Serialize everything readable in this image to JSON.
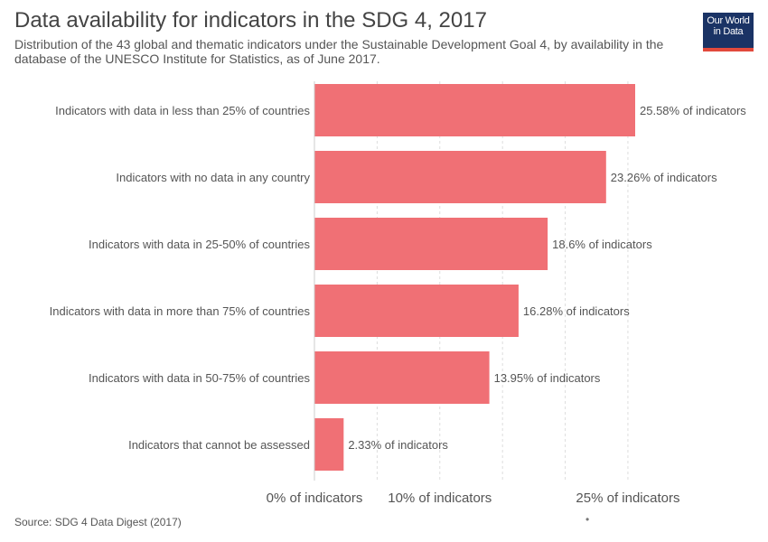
{
  "header": {
    "title": "Data availability for indicators in the SDG 4, 2017",
    "subtitle": "Distribution of the 43 global and thematic indicators under the Sustainable Development Goal 4, by availability in the database of the UNESCO Institute for Statistics, as of June 2017."
  },
  "logo": {
    "line1": "Our World",
    "line2": "in Data",
    "bg_color": "#1a3365",
    "accent_color": "#e2493c"
  },
  "footer": {
    "source": "Source: SDG 4 Data Digest (2017)",
    "marker": "•"
  },
  "chart_data": {
    "type": "bar",
    "orientation": "horizontal",
    "categories": [
      "Indicators with data in less than 25% of countries",
      "Indicators with no data in any country",
      "Indicators with data in 25-50% of countries",
      "Indicators with data in more than 75% of countries",
      "Indicators with data in 50-75% of countries",
      "Indicators that cannot be assessed"
    ],
    "values": [
      25.58,
      23.26,
      18.6,
      16.28,
      13.95,
      2.33
    ],
    "value_labels": [
      "25.58% of indicators",
      "23.26% of indicators",
      "18.6% of indicators",
      "16.28% of indicators",
      "13.95% of indicators",
      "2.33% of indicators"
    ],
    "x_ticks": [
      {
        "value": 0,
        "label": "0% of indicators"
      },
      {
        "value": 5,
        "label": ""
      },
      {
        "value": 10,
        "label": "10% of indicators"
      },
      {
        "value": 15,
        "label": ""
      },
      {
        "value": 20,
        "label": ""
      },
      {
        "value": 25,
        "label": "25% of indicators"
      }
    ],
    "xlim": [
      0,
      25.58
    ],
    "grid": true,
    "bar_color": "#f07075",
    "grid_color": "#dddddd"
  }
}
